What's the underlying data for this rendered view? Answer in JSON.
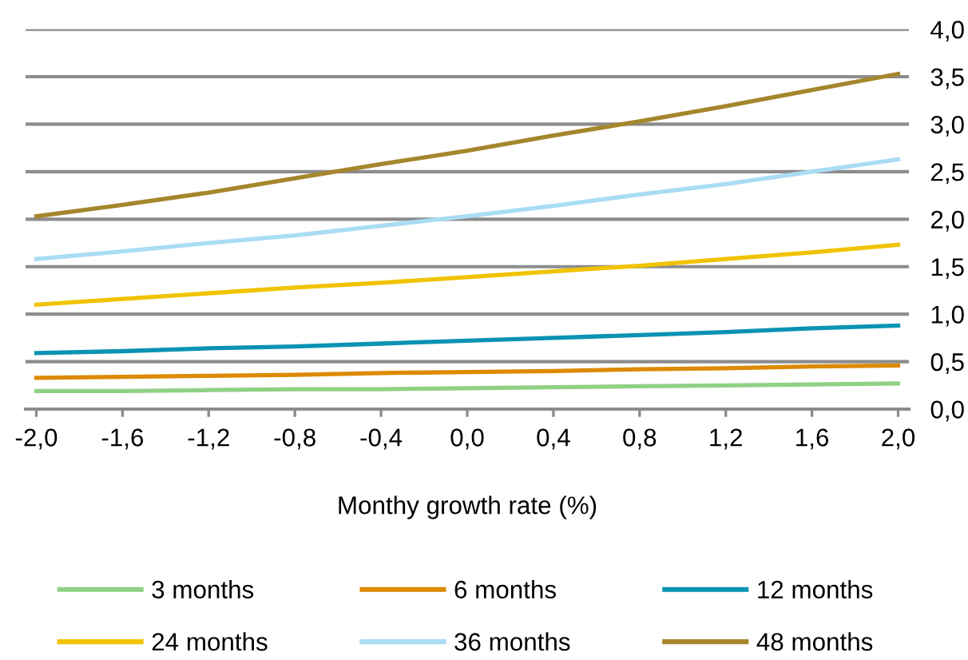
{
  "chart_data": {
    "type": "line",
    "xlabel": "Monthy growth rate (%)",
    "x": [
      -2.0,
      -1.6,
      -1.2,
      -0.8,
      -0.4,
      0.0,
      0.4,
      0.8,
      1.2,
      1.6,
      2.0
    ],
    "series": [
      {
        "name": "3 months",
        "color": "#8fd184",
        "values": [
          0.19,
          0.19,
          0.2,
          0.21,
          0.21,
          0.22,
          0.23,
          0.24,
          0.25,
          0.26,
          0.27
        ]
      },
      {
        "name": "6 months",
        "color": "#dd8a00",
        "values": [
          0.33,
          0.34,
          0.35,
          0.36,
          0.38,
          0.39,
          0.4,
          0.42,
          0.43,
          0.45,
          0.46
        ]
      },
      {
        "name": "12 months",
        "color": "#0a93b3",
        "values": [
          0.59,
          0.61,
          0.64,
          0.66,
          0.69,
          0.72,
          0.75,
          0.78,
          0.81,
          0.85,
          0.88
        ]
      },
      {
        "name": "24 months",
        "color": "#f0c300",
        "values": [
          1.1,
          1.16,
          1.22,
          1.28,
          1.33,
          1.39,
          1.45,
          1.51,
          1.58,
          1.65,
          1.73
        ]
      },
      {
        "name": "36 months",
        "color": "#a9dcf5",
        "values": [
          1.58,
          1.66,
          1.75,
          1.83,
          1.93,
          2.03,
          2.14,
          2.26,
          2.37,
          2.5,
          2.63
        ]
      },
      {
        "name": "48 months",
        "color": "#a5862c",
        "values": [
          2.03,
          2.15,
          2.28,
          2.43,
          2.58,
          2.72,
          2.88,
          3.03,
          3.19,
          3.36,
          3.53
        ]
      }
    ],
    "xlim": [
      -2.05,
      2.05
    ],
    "xticks": [
      {
        "value": -2.0,
        "label": "-2,0"
      },
      {
        "value": -1.6,
        "label": "-1,6"
      },
      {
        "value": -1.2,
        "label": "-1,2"
      },
      {
        "value": -0.8,
        "label": "-0,8"
      },
      {
        "value": -0.4,
        "label": "-0,4"
      },
      {
        "value": 0.0,
        "label": "0,0"
      },
      {
        "value": 0.4,
        "label": "0,4"
      },
      {
        "value": 0.8,
        "label": "0,8"
      },
      {
        "value": 1.2,
        "label": "1,2"
      },
      {
        "value": 1.6,
        "label": "1,6"
      },
      {
        "value": 2.0,
        "label": "2,0"
      }
    ],
    "ylim": [
      0,
      4
    ],
    "yticks": [
      {
        "value": 0,
        "label": "0,0"
      },
      {
        "value": 0.5,
        "label": "0,5"
      },
      {
        "value": 1.0,
        "label": "1,0"
      },
      {
        "value": 1.5,
        "label": "1,5"
      },
      {
        "value": 2.0,
        "label": "2,0"
      },
      {
        "value": 2.5,
        "label": "2,5"
      },
      {
        "value": 3.0,
        "label": "3,0"
      },
      {
        "value": 3.5,
        "label": "3,5"
      },
      {
        "value": 4.0,
        "label": "4,0"
      }
    ],
    "grid": "y",
    "legend": "bottom",
    "marker": "none",
    "line_style": "solid"
  }
}
